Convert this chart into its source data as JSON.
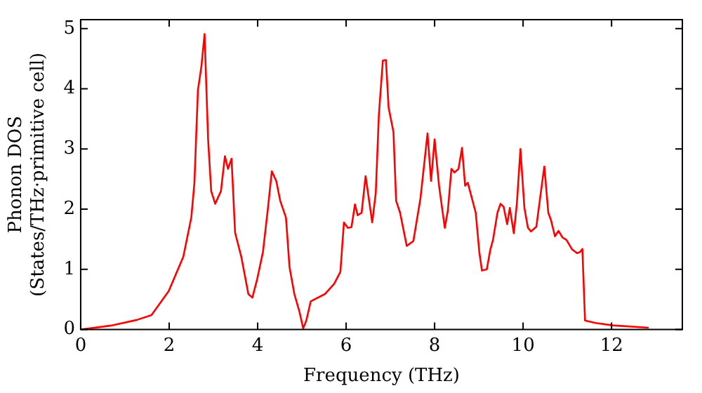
{
  "chart_data": {
    "type": "line",
    "xlabel": "Frequency (THz)",
    "ylabel": "Phonon DOS\n(States/THz·primitive cell)",
    "xlim": [
      0,
      13.6
    ],
    "ylim": [
      0,
      5.15
    ],
    "xticks": [
      0,
      2,
      4,
      6,
      8,
      10,
      12
    ],
    "yticks": [
      0,
      1,
      2,
      3,
      4,
      5
    ],
    "grid": false,
    "legend": false,
    "marker": "none",
    "line_style": "solid",
    "series": [
      {
        "color": "#ff0000",
        "x": [
          0,
          0.72,
          1.27,
          1.6,
          1.99,
          2.32,
          2.5,
          2.57,
          2.65,
          2.73,
          2.8,
          2.88,
          2.95,
          3.04,
          3.17,
          3.26,
          3.33,
          3.41,
          3.49,
          3.63,
          3.79,
          3.88,
          3.99,
          4.12,
          4.23,
          4.32,
          4.42,
          4.51,
          4.64,
          4.72,
          4.83,
          4.94,
          5.03,
          5.1,
          5.2,
          5.52,
          5.73,
          5.87,
          5.95,
          6.04,
          6.12,
          6.2,
          6.26,
          6.35,
          6.44,
          6.59,
          6.67,
          6.74,
          6.83,
          6.9,
          6.96,
          7.07,
          7.13,
          7.22,
          7.37,
          7.52,
          7.68,
          7.84,
          7.92,
          8.0,
          8.1,
          8.23,
          8.3,
          8.38,
          8.45,
          8.54,
          8.62,
          8.69,
          8.75,
          8.93,
          9.01,
          9.07,
          9.18,
          9.26,
          9.32,
          9.42,
          9.49,
          9.56,
          9.64,
          9.7,
          9.79,
          9.86,
          9.94,
          10.03,
          10.11,
          10.18,
          10.3,
          10.4,
          10.48,
          10.57,
          10.63,
          10.72,
          10.8,
          10.89,
          10.98,
          11.11,
          11.22,
          11.29,
          11.34,
          11.4,
          11.64,
          12.02,
          12.84
        ],
        "values": [
          0,
          0.07,
          0.16,
          0.24,
          0.64,
          1.21,
          1.86,
          2.43,
          3.98,
          4.38,
          4.91,
          3.16,
          2.3,
          2.09,
          2.3,
          2.88,
          2.67,
          2.84,
          1.61,
          1.21,
          0.59,
          0.53,
          0.84,
          1.29,
          2.0,
          2.63,
          2.47,
          2.14,
          1.86,
          1.04,
          0.59,
          0.31,
          0.02,
          0.15,
          0.47,
          0.59,
          0.76,
          0.96,
          1.78,
          1.69,
          1.7,
          2.08,
          1.9,
          1.94,
          2.55,
          1.78,
          2.27,
          3.57,
          4.47,
          4.48,
          3.69,
          3.28,
          2.14,
          1.94,
          1.39,
          1.47,
          2.18,
          3.26,
          2.47,
          3.16,
          2.39,
          1.69,
          1.98,
          2.67,
          2.61,
          2.67,
          3.02,
          2.39,
          2.44,
          1.94,
          1.29,
          0.98,
          1.0,
          1.33,
          1.49,
          1.94,
          2.09,
          2.04,
          1.75,
          2.02,
          1.6,
          2.1,
          3.0,
          2.02,
          1.69,
          1.63,
          1.71,
          2.27,
          2.71,
          1.94,
          1.82,
          1.55,
          1.64,
          1.53,
          1.49,
          1.33,
          1.27,
          1.29,
          1.34,
          0.15,
          0.11,
          0.07,
          0.03
        ]
      }
    ]
  }
}
